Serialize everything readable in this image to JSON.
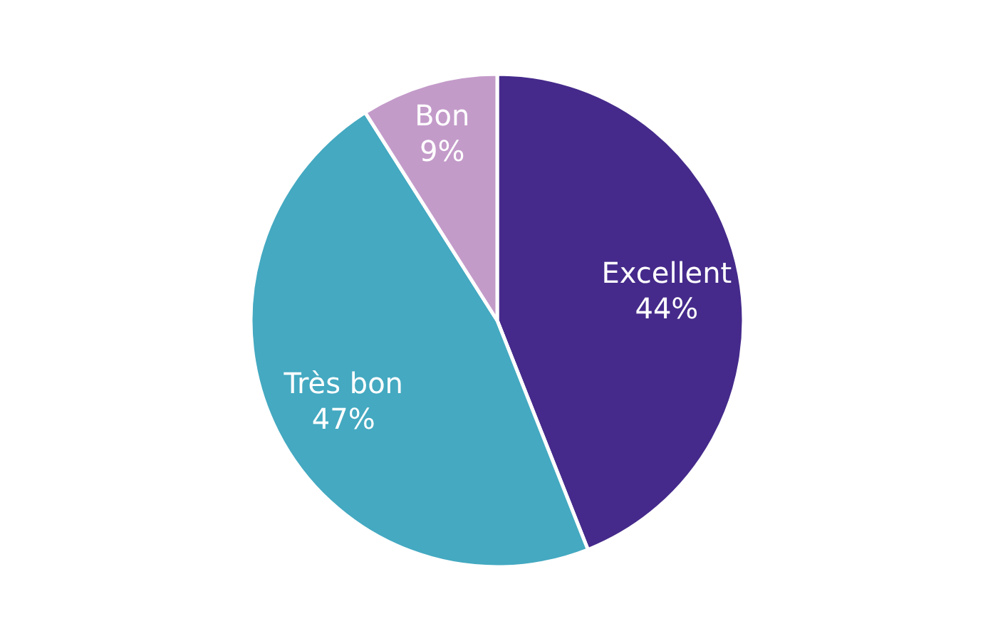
{
  "chart_data": {
    "type": "pie",
    "categories": [
      "Excellent",
      "Très bon",
      "Bon"
    ],
    "values": [
      44,
      47,
      9
    ],
    "colors": [
      "#452a8b",
      "#44a9c1",
      "#c39bc9"
    ],
    "value_labels": [
      "44%",
      "47%",
      "9%"
    ]
  }
}
